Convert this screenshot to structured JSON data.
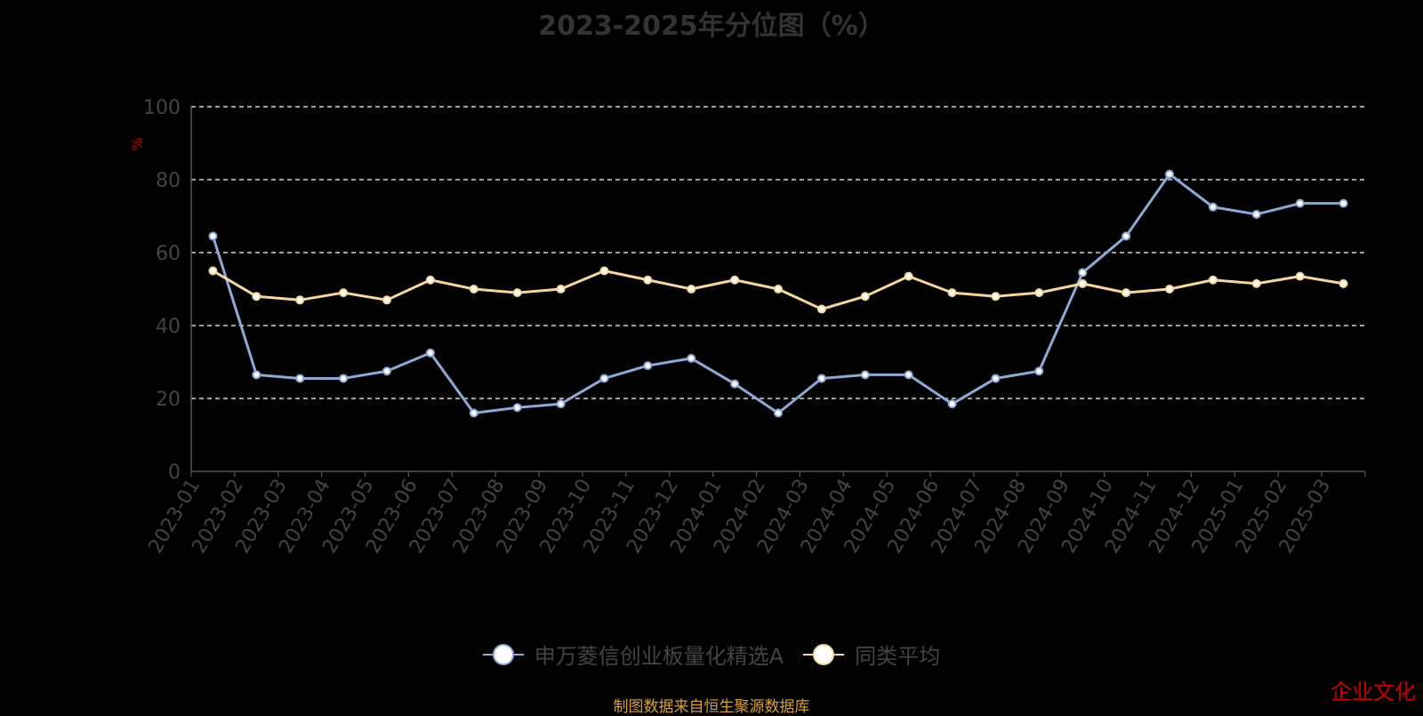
{
  "title": "2023-2025年分位图（%）",
  "source_note": "制图数据来自恒生聚源数据库",
  "watermark": "企业文化",
  "chart_data": {
    "type": "line",
    "title": "2023-2025年分位图（%）",
    "ylabel": "%",
    "xlabel": "",
    "ylim": [
      0,
      100
    ],
    "yticks": [
      0,
      20,
      40,
      60,
      80,
      100
    ],
    "grid": true,
    "legend_position": "bottom",
    "categories": [
      "2023-01",
      "2023-02",
      "2023-03",
      "2023-04",
      "2023-05",
      "2023-06",
      "2023-07",
      "2023-08",
      "2023-09",
      "2023-10",
      "2023-11",
      "2023-12",
      "2024-01",
      "2024-02",
      "2024-03",
      "2024-04",
      "2024-05",
      "2024-06",
      "2024-07",
      "2024-08",
      "2024-09",
      "2024-10",
      "2024-11",
      "2024-12",
      "2025-01",
      "2025-02",
      "2025-03"
    ],
    "series": [
      {
        "name": "申万菱信创业板量化精选A",
        "color": "#8fa9d6",
        "values": [
          64.5,
          26.5,
          25.5,
          25.5,
          27.5,
          32.5,
          16.0,
          17.5,
          18.5,
          25.5,
          29.0,
          31.0,
          24.0,
          16.0,
          25.5,
          26.5,
          26.5,
          18.5,
          25.5,
          27.5,
          54.5,
          64.5,
          81.5,
          72.5,
          70.5,
          73.5,
          73.5
        ]
      },
      {
        "name": "同类平均",
        "color": "#f5d79e",
        "values": [
          55.0,
          48.0,
          47.0,
          49.0,
          47.0,
          52.5,
          50.0,
          49.0,
          50.0,
          55.0,
          52.5,
          50.0,
          52.5,
          50.0,
          44.5,
          48.0,
          53.5,
          49.0,
          48.0,
          49.0,
          51.5,
          49.0,
          50.0,
          52.5,
          51.5,
          53.5,
          51.5
        ]
      }
    ]
  }
}
